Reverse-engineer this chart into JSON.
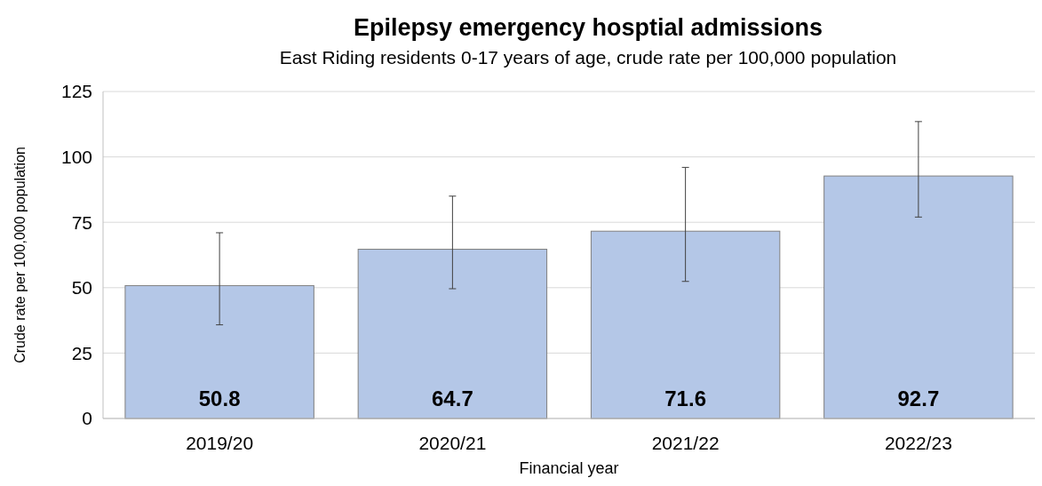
{
  "chart_data": {
    "type": "bar",
    "title": "Epilepsy emergency hosptial admissions",
    "subtitle": "East Riding residents 0-17 years of age, crude rate per 100,000 population",
    "xlabel": "Financial year",
    "ylabel": "Crude rate per 100,000 population",
    "categories": [
      "2019/20",
      "2020/21",
      "2021/22",
      "2022/23"
    ],
    "values": [
      50.8,
      64.7,
      71.6,
      92.7
    ],
    "errors": [
      [
        35.8,
        71
      ],
      [
        49.6,
        85
      ],
      [
        52.4,
        96
      ],
      [
        77,
        113.5
      ]
    ],
    "color": "#b4c7e7",
    "ylim": [
      0,
      125
    ],
    "yticks": [
      0,
      25,
      50,
      75,
      100,
      125
    ],
    "grid": "y",
    "data_labels": true
  }
}
